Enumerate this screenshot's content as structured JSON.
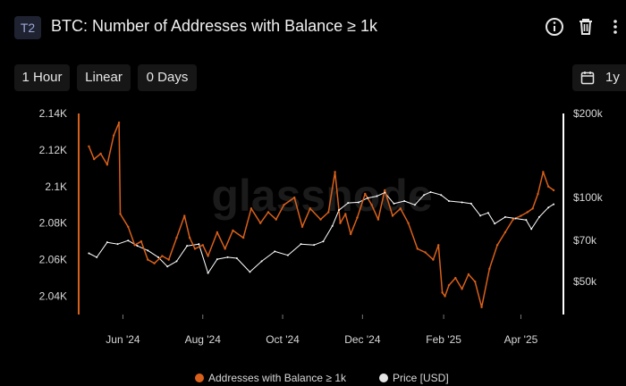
{
  "header": {
    "badge": "T2",
    "title": "BTC: Number of Addresses with Balance ≥ 1k",
    "icons": [
      "info-icon",
      "trash-icon",
      "more-vertical-icon"
    ]
  },
  "toolbar": {
    "resolution": "1 Hour",
    "scale": "Linear",
    "sma": "0 Days",
    "range": "1y",
    "range_icon": "calendar-icon"
  },
  "watermark": "glassnode",
  "colors": {
    "primary": "#d9601a",
    "secondary": "#ffffff",
    "background": "#000000"
  },
  "chart_data": {
    "type": "line",
    "title": "BTC: Number of Addresses with Balance ≥ 1k",
    "x_tick_labels": [
      "Jun '24",
      "Aug '24",
      "Oct '24",
      "Dec '24",
      "Feb '25",
      "Apr '25"
    ],
    "y_left": {
      "ticks": [
        "2.14K",
        "2.12K",
        "2.1K",
        "2.08K",
        "2.06K",
        "2.04K"
      ],
      "range": [
        2030,
        2140
      ]
    },
    "y_right": {
      "ticks": [
        "$200k",
        "$100k",
        "$70k",
        "$50k"
      ],
      "scale": "log",
      "range": [
        38000,
        200000
      ]
    },
    "legend_position": "bottom",
    "series": [
      {
        "name": "Addresses with Balance ≥ 1k",
        "axis": "left",
        "x": [
          "2024-05-06",
          "2024-05-10",
          "2024-05-15",
          "2024-05-20",
          "2024-05-25",
          "2024-05-29",
          "2024-05-30",
          "2024-06-05",
          "2024-06-10",
          "2024-06-15",
          "2024-06-20",
          "2024-06-25",
          "2024-07-01",
          "2024-07-06",
          "2024-07-12",
          "2024-07-18",
          "2024-07-22",
          "2024-07-26",
          "2024-08-01",
          "2024-08-05",
          "2024-08-12",
          "2024-08-18",
          "2024-08-24",
          "2024-09-01",
          "2024-09-07",
          "2024-09-14",
          "2024-09-20",
          "2024-09-26",
          "2024-10-02",
          "2024-10-10",
          "2024-10-16",
          "2024-10-22",
          "2024-10-30",
          "2024-11-05",
          "2024-11-10",
          "2024-11-14",
          "2024-11-18",
          "2024-11-22",
          "2024-11-27",
          "2024-12-03",
          "2024-12-08",
          "2024-12-13",
          "2024-12-18",
          "2024-12-24",
          "2024-12-30",
          "2025-01-05",
          "2025-01-12",
          "2025-01-18",
          "2025-01-24",
          "2025-01-28",
          "2025-01-31",
          "2025-02-02",
          "2025-02-05",
          "2025-02-10",
          "2025-02-15",
          "2025-02-20",
          "2025-02-25",
          "2025-03-02",
          "2025-03-08",
          "2025-03-14",
          "2025-03-20",
          "2025-03-26",
          "2025-04-01",
          "2025-04-06",
          "2025-04-10",
          "2025-04-14",
          "2025-04-18",
          "2025-04-22",
          "2025-04-26"
        ],
        "values": [
          2122,
          2115,
          2118,
          2112,
          2128,
          2135,
          2085,
          2078,
          2068,
          2070,
          2060,
          2058,
          2062,
          2060,
          2072,
          2084,
          2072,
          2066,
          2068,
          2062,
          2075,
          2066,
          2076,
          2072,
          2088,
          2080,
          2086,
          2082,
          2090,
          2094,
          2078,
          2088,
          2082,
          2086,
          2108,
          2080,
          2085,
          2074,
          2083,
          2096,
          2090,
          2082,
          2098,
          2084,
          2088,
          2080,
          2066,
          2064,
          2060,
          2068,
          2042,
          2040,
          2046,
          2050,
          2044,
          2052,
          2048,
          2034,
          2055,
          2068,
          2075,
          2082,
          2084,
          2086,
          2088,
          2096,
          2108,
          2100,
          2098
        ]
      },
      {
        "name": "Price [USD]",
        "axis": "right",
        "x": [
          "2024-05-06",
          "2024-05-12",
          "2024-05-20",
          "2024-05-28",
          "2024-06-05",
          "2024-06-12",
          "2024-06-20",
          "2024-06-28",
          "2024-07-05",
          "2024-07-12",
          "2024-07-20",
          "2024-07-29",
          "2024-08-05",
          "2024-08-12",
          "2024-08-20",
          "2024-08-27",
          "2024-09-06",
          "2024-09-15",
          "2024-09-25",
          "2024-10-05",
          "2024-10-15",
          "2024-10-25",
          "2024-11-01",
          "2024-11-08",
          "2024-11-13",
          "2024-11-20",
          "2024-11-28",
          "2024-12-05",
          "2024-12-12",
          "2024-12-18",
          "2024-12-25",
          "2025-01-02",
          "2025-01-10",
          "2025-01-17",
          "2025-01-22",
          "2025-01-30",
          "2025-02-05",
          "2025-02-15",
          "2025-02-22",
          "2025-03-01",
          "2025-03-07",
          "2025-03-12",
          "2025-03-20",
          "2025-03-28",
          "2025-04-05",
          "2025-04-09",
          "2025-04-15",
          "2025-04-22",
          "2025-04-26"
        ],
        "values": [
          63000,
          61000,
          69000,
          68000,
          70000,
          67000,
          64500,
          61000,
          56500,
          59000,
          67000,
          68000,
          53500,
          60000,
          61000,
          60500,
          54000,
          59000,
          64000,
          62000,
          68000,
          67500,
          69500,
          79000,
          90000,
          95500,
          96000,
          99500,
          101000,
          104000,
          95000,
          97000,
          94000,
          102000,
          104500,
          102000,
          97000,
          96000,
          95000,
          86000,
          88000,
          80500,
          85000,
          84000,
          83000,
          77000,
          85000,
          92000,
          94500
        ]
      }
    ]
  },
  "legend": {
    "series_1": "Addresses with Balance ≥ 1k",
    "series_2": "Price [USD]"
  }
}
